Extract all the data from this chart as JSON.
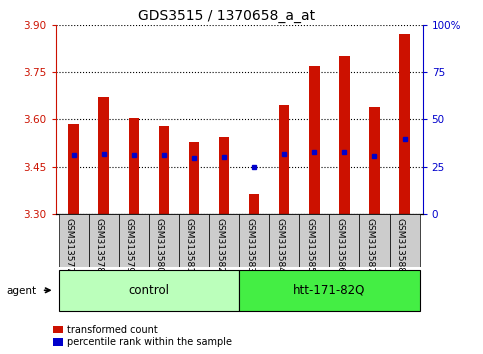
{
  "title": "GDS3515 / 1370658_a_at",
  "samples": [
    "GSM313577",
    "GSM313578",
    "GSM313579",
    "GSM313580",
    "GSM313581",
    "GSM313582",
    "GSM313583",
    "GSM313584",
    "GSM313585",
    "GSM313586",
    "GSM313587",
    "GSM313588"
  ],
  "groups": [
    "control",
    "control",
    "control",
    "control",
    "control",
    "control",
    "htt-171-82Q",
    "htt-171-82Q",
    "htt-171-82Q",
    "htt-171-82Q",
    "htt-171-82Q",
    "htt-171-82Q"
  ],
  "bar_values": [
    3.585,
    3.67,
    3.605,
    3.58,
    3.53,
    3.545,
    3.365,
    3.645,
    3.77,
    3.8,
    3.64,
    3.87
  ],
  "percentile_values": [
    3.486,
    3.492,
    3.489,
    3.486,
    3.479,
    3.481,
    3.451,
    3.492,
    3.498,
    3.498,
    3.483,
    3.537
  ],
  "bar_bottom": 3.3,
  "ymin": 3.3,
  "ymax": 3.9,
  "yticks_left": [
    3.3,
    3.45,
    3.6,
    3.75,
    3.9
  ],
  "yticks_right_vals": [
    0,
    25,
    50,
    75,
    100
  ],
  "yticks_right_labels": [
    "0",
    "25",
    "50",
    "75",
    "100%"
  ],
  "bar_color": "#cc1100",
  "dot_color": "#0000cc",
  "control_color": "#bbffbb",
  "treat_color": "#44ee44",
  "label_bg_color": "#cccccc",
  "group_label_fontsize": 8.5,
  "tick_label_fontsize": 6.5,
  "title_fontsize": 10,
  "bar_width": 0.35
}
